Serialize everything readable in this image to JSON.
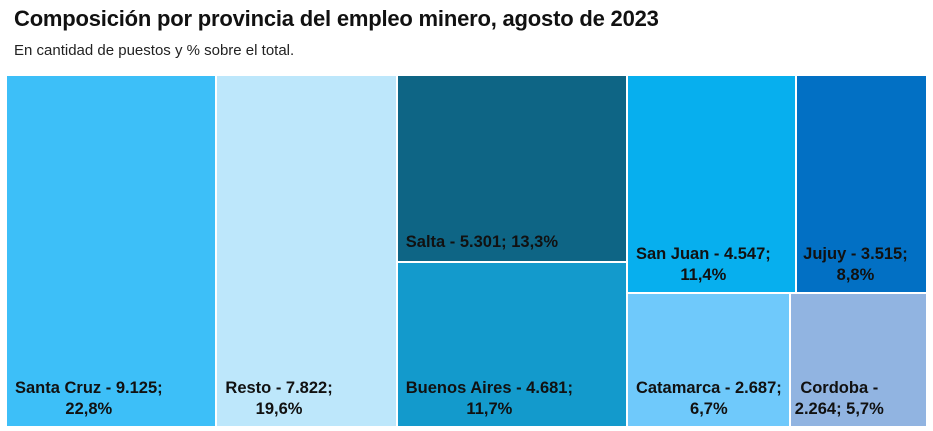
{
  "chart_data": {
    "type": "treemap",
    "title": "Composición por provincia del empleo minero, agosto de 2023",
    "subtitle": "En cantidad de puestos y % sobre el total.",
    "tiles": [
      {
        "name": "Santa Cruz",
        "value": 9125,
        "share": 22.8,
        "label_line1": "Santa Cruz - 9.125;",
        "label_line2": "22,8%",
        "color": "#3DBFF8"
      },
      {
        "name": "Resto",
        "value": 7822,
        "share": 19.6,
        "label_line1": "Resto - 7.822;",
        "label_line2": "19,6%",
        "color": "#BDE7FB"
      },
      {
        "name": "Salta",
        "value": 5301,
        "share": 13.3,
        "label_line1": "Salta - 5.301; 13,3%",
        "label_line2": "",
        "color": "#0E6585"
      },
      {
        "name": "Buenos Aires",
        "value": 4681,
        "share": 11.7,
        "label_line1": "Buenos Aires - 4.681;",
        "label_line2": "11,7%",
        "color": "#139ACC"
      },
      {
        "name": "San Juan",
        "value": 4547,
        "share": 11.4,
        "label_line1": "San Juan - 4.547;",
        "label_line2": "11,4%",
        "color": "#07AFEE"
      },
      {
        "name": "Jujuy",
        "value": 3515,
        "share": 8.8,
        "label_line1": "Jujuy - 3.515;",
        "label_line2": "8,8%",
        "color": "#0270C4"
      },
      {
        "name": "Catamarca",
        "value": 2687,
        "share": 6.7,
        "label_line1": "Catamarca - 2.687;",
        "label_line2": "6,7%",
        "color": "#6FC9FB"
      },
      {
        "name": "Cordoba",
        "value": 2264,
        "share": 5.7,
        "label_line1": "Cordoba -",
        "label_line2": "2.264; 5,7%",
        "color": "#91B4E1"
      }
    ]
  }
}
